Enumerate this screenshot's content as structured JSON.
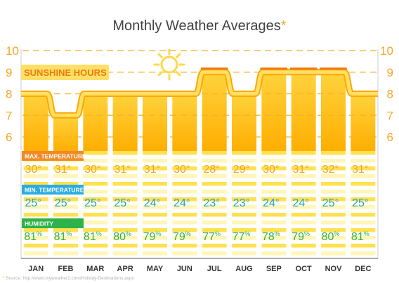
{
  "chart_data": {
    "type": "bar",
    "title": "Monthly Weather Averages",
    "title_marker": "*",
    "categories": [
      "JAN",
      "FEB",
      "MAR",
      "APR",
      "MAY",
      "JUN",
      "JUL",
      "AUG",
      "SEP",
      "OCT",
      "NOV",
      "DEC"
    ],
    "y_ticks": [
      "10",
      "9",
      "8",
      "7",
      "6"
    ],
    "ylim": [
      5,
      10
    ],
    "series": [
      {
        "name": "SUNSHINE HOURS",
        "values": [
          8,
          7,
          8,
          8,
          8,
          8,
          9,
          8,
          9,
          9,
          9,
          8
        ]
      },
      {
        "name": "MAX. TEMPERATURE",
        "values": [
          30,
          31,
          30,
          31,
          31,
          30,
          28,
          29,
          30,
          31,
          32,
          31
        ],
        "unit": "°"
      },
      {
        "name": "MIN. TEMPERATURE",
        "values": [
          25,
          25,
          25,
          25,
          24,
          24,
          23,
          23,
          24,
          24,
          25,
          25
        ],
        "unit": "°"
      },
      {
        "name": "HUMIDITY",
        "values": [
          81,
          81,
          81,
          80,
          79,
          79,
          77,
          77,
          78,
          79,
          80,
          81
        ],
        "unit": "%"
      }
    ],
    "source": "Source: http://www.myweather2.com/Holiday-Destinations.aspx",
    "grid": true,
    "colors": {
      "bar_top": "#ffd33d",
      "bar_bottom": "#ffae00",
      "sun_line": "#ffe066",
      "sun_line_outline": "#ffa800",
      "highlight_line": "#f07a10",
      "max_label": "#f08a24",
      "min_label": "#29abe2",
      "hum_label": "#2eb24a",
      "max_text": "#f4a41f",
      "min_text": "#1aa3cf",
      "hum_text": "#2eb24a",
      "axis_text": "#f6a623",
      "title_text": "#424242",
      "asterisk": "#f5a623"
    }
  }
}
